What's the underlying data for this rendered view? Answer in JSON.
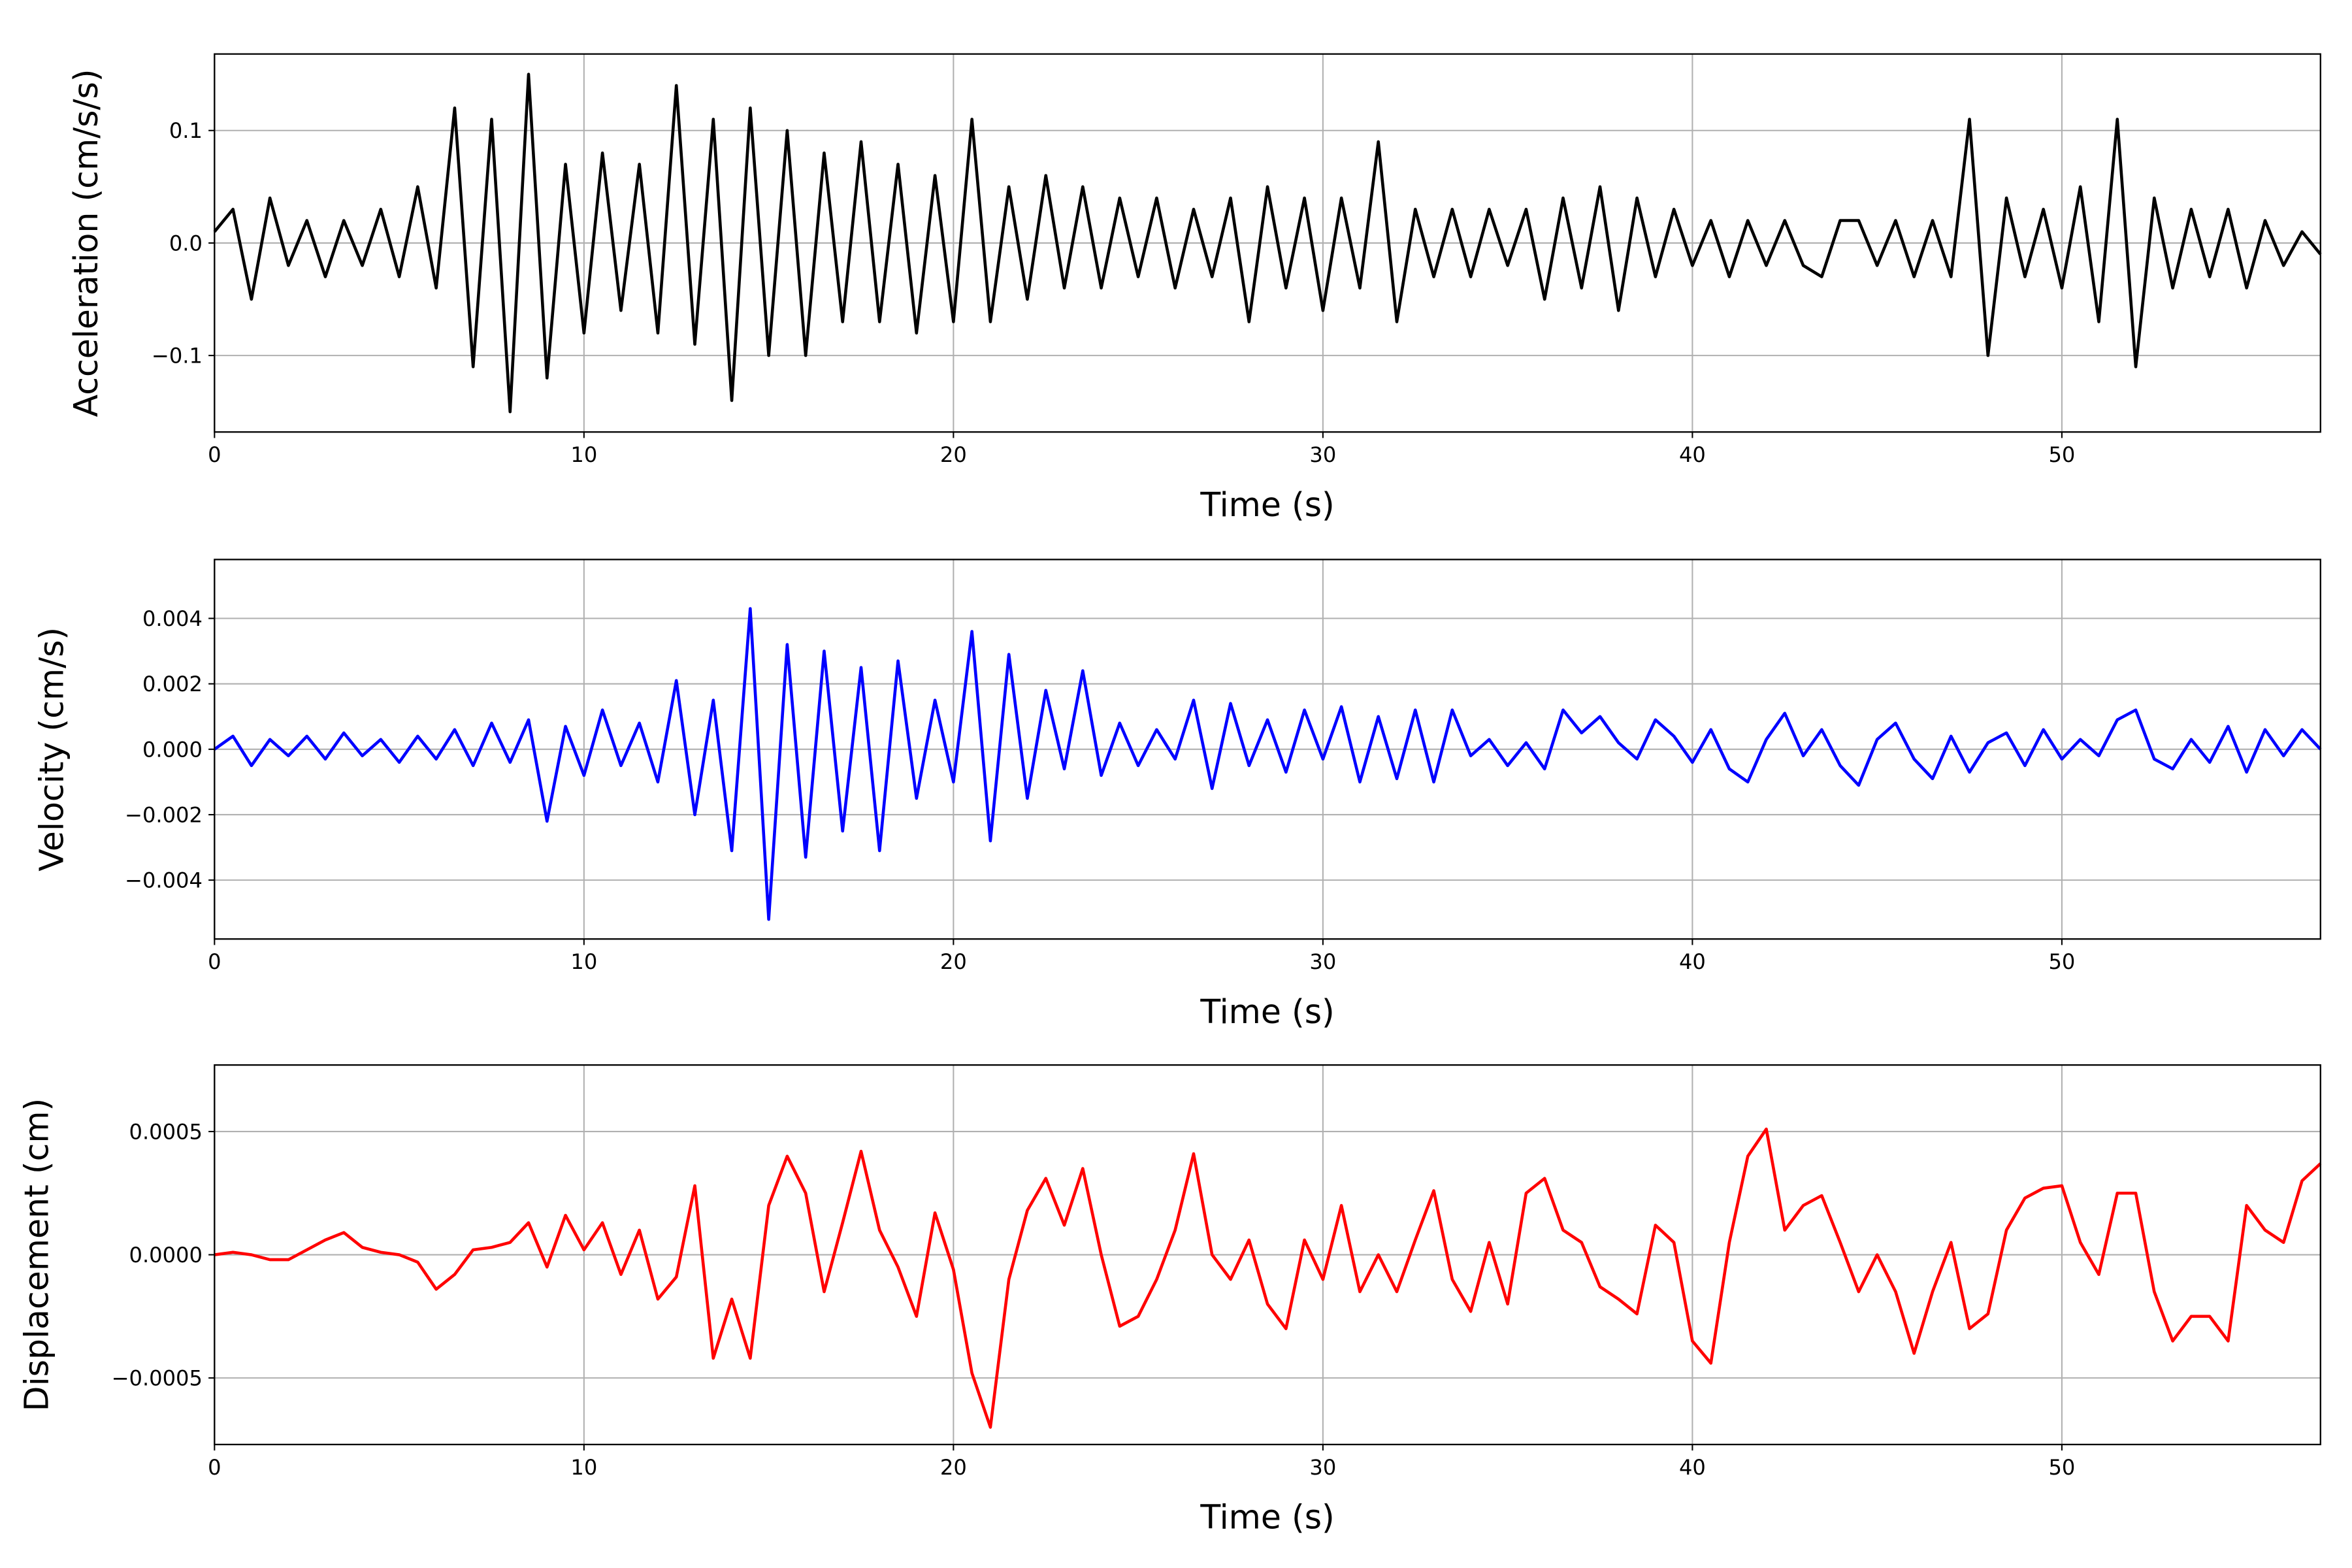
{
  "chart_data": [
    {
      "type": "line",
      "ylabel": "Acceleration (cm/s/s)",
      "xlabel": "Time (s)",
      "color": "#000000",
      "grid": true,
      "xlim": [
        0,
        57
      ],
      "xticks": [
        0,
        10,
        20,
        30,
        40,
        50
      ],
      "ylim": [
        -0.168,
        0.168
      ],
      "yticks": [
        {
          "value": -0.1,
          "label": "−0.1"
        },
        {
          "value": 0,
          "label": "0.0"
        },
        0.1
      ],
      "x": [
        0,
        0.5,
        1,
        1.5,
        2,
        2.5,
        3,
        3.5,
        4,
        4.5,
        5,
        5.5,
        6,
        6.5,
        7,
        7.5,
        8,
        8.5,
        9,
        9.5,
        10,
        10.5,
        11,
        11.5,
        12,
        12.5,
        13,
        13.5,
        14,
        14.5,
        15,
        15.5,
        16,
        16.5,
        17,
        17.5,
        18,
        18.5,
        19,
        19.5,
        20,
        20.5,
        21,
        21.5,
        22,
        22.5,
        23,
        23.5,
        24,
        24.5,
        25,
        25.5,
        26,
        26.5,
        27,
        27.5,
        28,
        28.5,
        29,
        29.5,
        30,
        30.5,
        31,
        31.5,
        32,
        32.5,
        33,
        33.5,
        34,
        34.5,
        35,
        35.5,
        36,
        36.5,
        37,
        37.5,
        38,
        38.5,
        39,
        39.5,
        40,
        40.5,
        41,
        41.5,
        42,
        42.5,
        43,
        43.5,
        44,
        44.5,
        45,
        45.5,
        46,
        46.5,
        47,
        47.5,
        48,
        48.5,
        49,
        49.5,
        50,
        50.5,
        51,
        51.5,
        52,
        52.5,
        53,
        53.5,
        54,
        54.5,
        55,
        55.5,
        56,
        56.5,
        57
      ],
      "values": [
        0.01,
        0.03,
        -0.05,
        0.04,
        -0.02,
        0.02,
        -0.03,
        0.02,
        -0.02,
        0.03,
        -0.03,
        0.05,
        -0.04,
        0.12,
        -0.11,
        0.11,
        -0.15,
        0.15,
        -0.12,
        0.07,
        -0.08,
        0.08,
        -0.06,
        0.07,
        -0.08,
        0.14,
        -0.09,
        0.11,
        -0.14,
        0.12,
        -0.1,
        0.1,
        -0.1,
        0.08,
        -0.07,
        0.09,
        -0.07,
        0.07,
        -0.08,
        0.06,
        -0.07,
        0.11,
        -0.07,
        0.05,
        -0.05,
        0.06,
        -0.04,
        0.05,
        -0.04,
        0.04,
        -0.03,
        0.04,
        -0.04,
        0.03,
        -0.03,
        0.04,
        -0.07,
        0.05,
        -0.04,
        0.04,
        -0.06,
        0.04,
        -0.04,
        0.09,
        -0.07,
        0.03,
        -0.03,
        0.03,
        -0.03,
        0.03,
        -0.02,
        0.03,
        -0.05,
        0.04,
        -0.04,
        0.05,
        -0.06,
        0.04,
        -0.03,
        0.03,
        -0.02,
        0.02,
        -0.03,
        0.02,
        -0.02,
        0.02,
        -0.02,
        -0.03,
        0.02,
        0.02,
        -0.02,
        0.02,
        -0.03,
        0.02,
        -0.03,
        0.11,
        -0.1,
        0.04,
        -0.03,
        0.03,
        -0.04,
        0.05,
        -0.07,
        0.11,
        -0.11,
        0.04,
        -0.04,
        0.03,
        -0.03,
        0.03,
        -0.04,
        0.02,
        -0.02,
        0.01,
        -0.01
      ]
    },
    {
      "type": "line",
      "ylabel": "Velocity (cm/s)",
      "xlabel": "Time (s)",
      "color": "#0000ff",
      "grid": true,
      "xlim": [
        0,
        57
      ],
      "xticks": [
        0,
        10,
        20,
        30,
        40,
        50
      ],
      "ylim": [
        -0.0058,
        0.0058
      ],
      "yticks": [
        {
          "value": -0.004,
          "label": "−0.004"
        },
        {
          "value": -0.002,
          "label": "−0.002"
        },
        {
          "value": 0,
          "label": "0.000"
        },
        0.002,
        0.004
      ],
      "x": [
        0,
        0.5,
        1,
        1.5,
        2,
        2.5,
        3,
        3.5,
        4,
        4.5,
        5,
        5.5,
        6,
        6.5,
        7,
        7.5,
        8,
        8.5,
        9,
        9.5,
        10,
        10.5,
        11,
        11.5,
        12,
        12.5,
        13,
        13.5,
        14,
        14.5,
        15,
        15.5,
        16,
        16.5,
        17,
        17.5,
        18,
        18.5,
        19,
        19.5,
        20,
        20.5,
        21,
        21.5,
        22,
        22.5,
        23,
        23.5,
        24,
        24.5,
        25,
        25.5,
        26,
        26.5,
        27,
        27.5,
        28,
        28.5,
        29,
        29.5,
        30,
        30.5,
        31,
        31.5,
        32,
        32.5,
        33,
        33.5,
        34,
        34.5,
        35,
        35.5,
        36,
        36.5,
        37,
        37.5,
        38,
        38.5,
        39,
        39.5,
        40,
        40.5,
        41,
        41.5,
        42,
        42.5,
        43,
        43.5,
        44,
        44.5,
        45,
        45.5,
        46,
        46.5,
        47,
        47.5,
        48,
        48.5,
        49,
        49.5,
        50,
        50.5,
        51,
        51.5,
        52,
        52.5,
        53,
        53.5,
        54,
        54.5,
        55,
        55.5,
        56,
        56.5,
        57
      ],
      "values": [
        0,
        0.0004,
        -0.0005,
        0.0003,
        -0.0002,
        0.0004,
        -0.0003,
        0.0005,
        -0.0002,
        0.0003,
        -0.0004,
        0.0004,
        -0.0003,
        0.0006,
        -0.0005,
        0.0008,
        -0.0004,
        0.0009,
        -0.0022,
        0.0007,
        -0.0008,
        0.0012,
        -0.0005,
        0.0008,
        -0.001,
        0.0021,
        -0.002,
        0.0015,
        -0.0031,
        0.0043,
        -0.0052,
        0.0032,
        -0.0033,
        0.003,
        -0.0025,
        0.0025,
        -0.0031,
        0.0027,
        -0.0015,
        0.0015,
        -0.001,
        0.0036,
        -0.0028,
        0.0029,
        -0.0015,
        0.0018,
        -0.0006,
        0.0024,
        -0.0008,
        0.0008,
        -0.0005,
        0.0006,
        -0.0003,
        0.0015,
        -0.0012,
        0.0014,
        -0.0005,
        0.0009,
        -0.0007,
        0.0012,
        -0.0003,
        0.0013,
        -0.001,
        0.001,
        -0.0009,
        0.0012,
        -0.001,
        0.0012,
        -0.0002,
        0.0003,
        -0.0005,
        0.0002,
        -0.0006,
        0.0012,
        0.0005,
        0.001,
        0.0002,
        -0.0003,
        0.0009,
        0.0004,
        -0.0004,
        0.0006,
        -0.0006,
        -0.001,
        0.0003,
        0.0011,
        -0.0002,
        0.0006,
        -0.0005,
        -0.0011,
        0.0003,
        0.0008,
        -0.0003,
        -0.0009,
        0.0004,
        -0.0007,
        0.0002,
        0.0005,
        -0.0005,
        0.0006,
        -0.0003,
        0.0003,
        -0.0002,
        0.0009,
        0.0012,
        -0.0003,
        -0.0006,
        0.0003,
        -0.0004,
        0.0007,
        -0.0007,
        0.0006,
        -0.0002,
        0.0006,
        0
      ]
    },
    {
      "type": "line",
      "ylabel": "Displacement (cm)",
      "xlabel": "Time (s)",
      "color": "#ff0000",
      "grid": true,
      "xlim": [
        0,
        57
      ],
      "xticks": [
        0,
        10,
        20,
        30,
        40,
        50
      ],
      "ylim": [
        -0.00077,
        0.00077
      ],
      "yticks": [
        {
          "value": -0.0005,
          "label": "−0.0005"
        },
        {
          "value": 0,
          "label": "0.0000"
        },
        0.0005
      ],
      "x": [
        0,
        0.5,
        1,
        1.5,
        2,
        2.5,
        3,
        3.5,
        4,
        4.5,
        5,
        5.5,
        6,
        6.5,
        7,
        7.5,
        8,
        8.5,
        9,
        9.5,
        10,
        10.5,
        11,
        11.5,
        12,
        12.5,
        13,
        13.5,
        14,
        14.5,
        15,
        15.5,
        16,
        16.5,
        17,
        17.5,
        18,
        18.5,
        19,
        19.5,
        20,
        20.5,
        21,
        21.5,
        22,
        22.5,
        23,
        23.5,
        24,
        24.5,
        25,
        25.5,
        26,
        26.5,
        27,
        27.5,
        28,
        28.5,
        29,
        29.5,
        30,
        30.5,
        31,
        31.5,
        32,
        32.5,
        33,
        33.5,
        34,
        34.5,
        35,
        35.5,
        36,
        36.5,
        37,
        37.5,
        38,
        38.5,
        39,
        39.5,
        40,
        40.5,
        41,
        41.5,
        42,
        42.5,
        43,
        43.5,
        44,
        44.5,
        45,
        45.5,
        46,
        46.5,
        47,
        47.5,
        48,
        48.5,
        49,
        49.5,
        50,
        50.5,
        51,
        51.5,
        52,
        52.5,
        53,
        53.5,
        54,
        54.5,
        55,
        55.5,
        56,
        56.5,
        57
      ],
      "values": [
        0,
        1e-05,
        0,
        -2e-05,
        -2e-05,
        2e-05,
        6e-05,
        9e-05,
        3e-05,
        1e-05,
        0,
        -3e-05,
        -0.00014,
        -8e-05,
        2e-05,
        3e-05,
        5e-05,
        0.00013,
        -5e-05,
        0.00016,
        2e-05,
        0.00013,
        -8e-05,
        0.0001,
        -0.00018,
        -9e-05,
        0.00028,
        -0.00042,
        -0.00018,
        -0.00042,
        0.0002,
        0.0004,
        0.00025,
        -0.00015,
        0.00013,
        0.00042,
        0.0001,
        -5e-05,
        -0.00025,
        0.00017,
        -6e-05,
        -0.00048,
        -0.0007,
        -0.0001,
        0.00018,
        0.00031,
        0.00012,
        0.00035,
        0,
        -0.00029,
        -0.00025,
        -0.0001,
        0.0001,
        0.00041,
        0,
        -0.0001,
        6e-05,
        -0.0002,
        -0.0003,
        6e-05,
        -0.0001,
        0.0002,
        -0.00015,
        0,
        -0.00015,
        6e-05,
        0.00026,
        -0.0001,
        -0.00023,
        5e-05,
        -0.0002,
        0.00025,
        0.00031,
        0.0001,
        5e-05,
        -0.00013,
        -0.00018,
        -0.00024,
        0.00012,
        5e-05,
        -0.00035,
        -0.00044,
        5e-05,
        0.0004,
        0.00051,
        0.0001,
        0.0002,
        0.00024,
        5e-05,
        -0.00015,
        0,
        -0.00015,
        -0.0004,
        -0.00015,
        5e-05,
        -0.0003,
        -0.00024,
        0.0001,
        0.00023,
        0.00027,
        0.00028,
        5e-05,
        -8e-05,
        0.00025,
        0.00025,
        -0.00015,
        -0.00035,
        -0.00025,
        -0.00025,
        -0.00035,
        0.0002,
        0.0001,
        5e-05,
        0.0003,
        0.00037
      ]
    }
  ]
}
